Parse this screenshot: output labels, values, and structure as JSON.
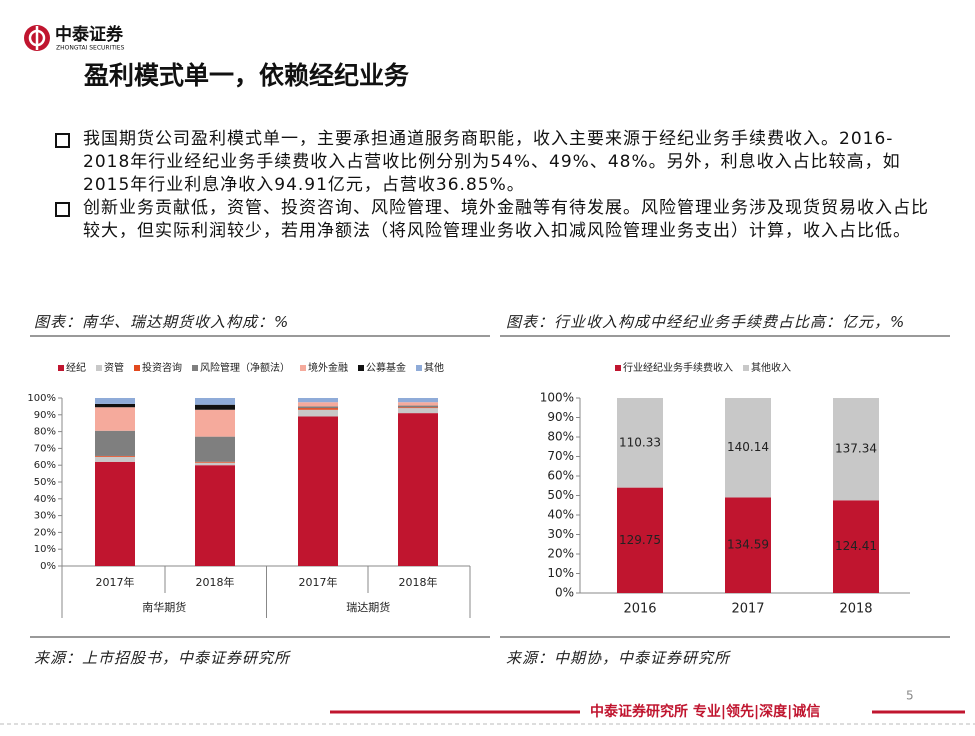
{
  "header": {
    "logo_name": "中泰证券",
    "logo_sub": "ZHONGTAI SECURITIES",
    "title": "盈利模式单一，依赖经纪业务"
  },
  "bullets": [
    "我国期货公司盈利模式单一，主要承担通道服务商职能，收入主要来源于经纪业务手续费收入。2016-2018年行业经纪业务手续费收入占营收比例分别为54%、49%、48%。另外，利息收入占比较高，如2015年行业利息净收入94.91亿元，占营收36.85%。",
    "创新业务贡献低，资管、投资咨询、风险管理、境外金融等有待发展。风险管理业务涉及现货贸易收入占比较大，但实际利润较少，若用净额法（将风险管理业务收入扣减风险管理业务支出）计算，收入占比低。"
  ],
  "chart_data": [
    {
      "type": "bar",
      "stacked": true,
      "title": "图表：南华、瑞达期货收入构成：%",
      "source": "来源：上市招股书，中泰证券研究所",
      "categories": [
        "2017年",
        "2018年",
        "2017年",
        "2018年"
      ],
      "groups": [
        "南华期货",
        "瑞达期货"
      ],
      "series": [
        {
          "name": "经纪",
          "color": "#c0152f",
          "values": [
            62,
            60,
            89,
            91
          ]
        },
        {
          "name": "资管",
          "color": "#c8c8c8",
          "values": [
            3,
            1.5,
            4,
            3
          ]
        },
        {
          "name": "投资咨询",
          "color": "#e2491e",
          "values": [
            0.5,
            0.5,
            1,
            0.5
          ]
        },
        {
          "name": "风险管理（净额法）",
          "color": "#7f7f7f",
          "values": [
            15,
            15,
            1,
            1
          ]
        },
        {
          "name": "境外金融",
          "color": "#f5aa9c",
          "values": [
            14,
            16,
            2.5,
            2
          ]
        },
        {
          "name": "公募基金",
          "color": "#111111",
          "values": [
            2,
            3,
            0,
            0
          ]
        },
        {
          "name": "其他",
          "color": "#8fabd8",
          "values": [
            3.5,
            4,
            2.5,
            2.5
          ]
        }
      ],
      "ylim": [
        0,
        100
      ],
      "yticks": [
        {
          "value": 0,
          "label": "0%"
        },
        {
          "value": 10,
          "label": "10%"
        },
        {
          "value": 20,
          "label": "20%"
        },
        {
          "value": 30,
          "label": "30%"
        },
        {
          "value": 40,
          "label": "40%"
        },
        {
          "value": 50,
          "label": "50%"
        },
        {
          "value": 60,
          "label": "60%"
        },
        {
          "value": 70,
          "label": "70%"
        },
        {
          "value": 80,
          "label": "80%"
        },
        {
          "value": 90,
          "label": "90%"
        },
        {
          "value": 100,
          "label": "100%"
        }
      ]
    },
    {
      "type": "bar",
      "stacked": true,
      "stacking": "percent",
      "title": "图表：行业收入构成中经纪业务手续费占比高：亿元，%",
      "source": "来源：中期协，中泰证券研究所",
      "categories": [
        "2016",
        "2017",
        "2018"
      ],
      "series": [
        {
          "name": "行业经纪业务手续费收入",
          "color": "#c0152f",
          "values": [
            129.75,
            134.59,
            124.41
          ]
        },
        {
          "name": "其他收入",
          "color": "#c8c8c8",
          "values": [
            110.33,
            140.14,
            137.34
          ]
        }
      ],
      "ylim": [
        0,
        100
      ],
      "yticks": [
        {
          "value": 0,
          "label": "0%"
        },
        {
          "value": 10,
          "label": "10%"
        },
        {
          "value": 20,
          "label": "20%"
        },
        {
          "value": 30,
          "label": "30%"
        },
        {
          "value": 40,
          "label": "40%"
        },
        {
          "value": 50,
          "label": "50%"
        },
        {
          "value": 60,
          "label": "60%"
        },
        {
          "value": 70,
          "label": "70%"
        },
        {
          "value": 80,
          "label": "80%"
        },
        {
          "value": 90,
          "label": "90%"
        },
        {
          "value": 100,
          "label": "100%"
        }
      ]
    }
  ],
  "page_number": "5",
  "footer": "中泰证券研究所 专业|领先|深度|诚信"
}
